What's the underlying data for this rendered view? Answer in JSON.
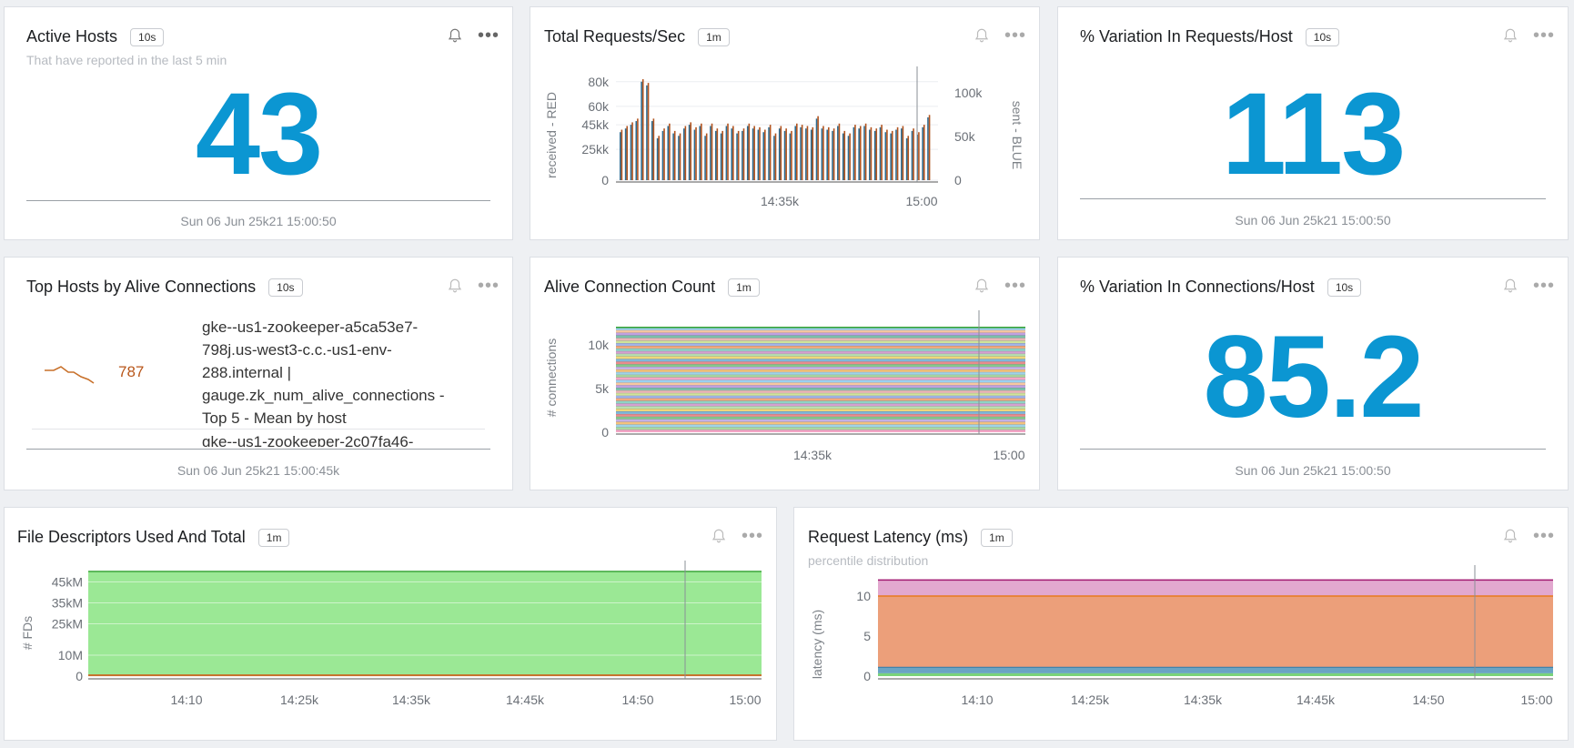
{
  "active_hosts": {
    "title": "Active Hosts",
    "resolution": "10s",
    "subtitle": "That have reported in the last 5 min",
    "value": "43",
    "timestamp": "Sun 06 Jun 25k21 15:00:50"
  },
  "total_requests": {
    "title": "Total Requests/Sec",
    "resolution": "1m",
    "chart_data": {
      "type": "bar",
      "y_left_label": "received - RED",
      "y_right_label": "sent - BLUE",
      "y_left_ticks": [
        "80k",
        "60k",
        "45kk",
        "25kk",
        "0"
      ],
      "y_right_ticks": [
        "100k",
        "50k",
        "0"
      ],
      "x_ticks": [
        "14:35k",
        "15:00"
      ],
      "ylim": [
        0,
        85000
      ],
      "received": [
        41000,
        44000,
        47000,
        50000,
        82000,
        79000,
        50000,
        36000,
        42000,
        46000,
        40000,
        38000,
        44000,
        47000,
        43000,
        46000,
        38000,
        46000,
        42000,
        40000,
        46000,
        44000,
        40000,
        42000,
        46000,
        44000,
        43000,
        41000,
        45000,
        38000,
        44000,
        42000,
        40000,
        46000,
        45000,
        44000,
        43000,
        52000,
        44000,
        43000,
        42000,
        46000,
        40000,
        38000,
        45000,
        44000,
        46000,
        43000,
        42000,
        45000,
        41000,
        40000,
        43000,
        44000,
        36000,
        42000,
        39000,
        45000,
        53000
      ],
      "sent": [
        39000,
        42000,
        45000,
        48000,
        80000,
        77000,
        48000,
        34000,
        40000,
        44000,
        38000,
        36000,
        42000,
        45000,
        41000,
        44000,
        36000,
        44000,
        40000,
        38000,
        44000,
        42000,
        38000,
        40000,
        44000,
        42000,
        41000,
        39000,
        43000,
        36000,
        42000,
        40000,
        38000,
        44000,
        43000,
        42000,
        41000,
        50000,
        42000,
        41000,
        40000,
        44000,
        38000,
        36000,
        43000,
        42000,
        44000,
        41000,
        40000,
        43000,
        39000,
        38000,
        41000,
        42000,
        34000,
        40000,
        37000,
        43000,
        51000
      ]
    }
  },
  "variation_requests": {
    "title": "% Variation In Requests/Host",
    "resolution": "10s",
    "value": "113",
    "timestamp": "Sun 06 Jun 25k21 15:00:50"
  },
  "top_hosts": {
    "title": "Top Hosts by Alive Connections",
    "resolution": "10s",
    "rows": [
      {
        "value": "787",
        "lines": [
          "gke--us1-zookeeper-a5ca53e7-",
          "798j.us-west3-c.c.-us1-env-",
          "288.internal |",
          "gauge.zk_num_alive_connections -",
          "Top 5 - Mean by host"
        ]
      },
      {
        "lines": [
          "gke--us1-zookeeper-2c07fa46-"
        ]
      }
    ],
    "timestamp": "Sun 06 Jun 25k21 15:00:45k"
  },
  "alive_conn": {
    "title": "Alive Connection Count",
    "resolution": "1m",
    "chart_data": {
      "type": "area",
      "ylabel": "# connections",
      "y_ticks": [
        "10k",
        "5k",
        "0"
      ],
      "x_ticks": [
        "14:35k",
        "15:00"
      ],
      "ylim": [
        0,
        12500
      ],
      "series_total": 12000,
      "band_count": 40
    }
  },
  "variation_conn": {
    "title": "% Variation In Connections/Host",
    "resolution": "10s",
    "value": "85.2",
    "timestamp": "Sun 06 Jun 25k21 15:00:50"
  },
  "file_desc": {
    "title": "File Descriptors Used And Total",
    "resolution": "1m",
    "chart_data": {
      "type": "area",
      "ylabel": "# FDs",
      "y_ticks": [
        "45kM",
        "35kM",
        "25kM",
        "10M",
        "0"
      ],
      "x_ticks": [
        "14:10",
        "14:25k",
        "14:35k",
        "14:45k",
        "14:50",
        "15:00"
      ],
      "series": [
        {
          "value": 50000000,
          "color": "#9be895"
        },
        {
          "value": 400000,
          "color": "#c8702a"
        }
      ],
      "ylim": [
        0,
        50000000
      ]
    }
  },
  "latency": {
    "title": "Request Latency (ms)",
    "resolution": "1m",
    "subtitle": "percentile distribution",
    "chart_data": {
      "type": "area",
      "ylabel": "latency (ms)",
      "y_ticks": [
        "10",
        "5",
        "0"
      ],
      "x_ticks": [
        "14:10",
        "14:25k",
        "14:35k",
        "14:45k",
        "14:50",
        "15:00"
      ],
      "ylim": [
        0,
        12.5
      ],
      "bands": [
        {
          "from": 10.0,
          "to": 12.0,
          "color": "#e2a8cf"
        },
        {
          "from": 1.1,
          "to": 10.0,
          "color": "#ec9f7a"
        },
        {
          "from": 0.35,
          "to": 1.1,
          "color": "#6aa4c4"
        },
        {
          "from": 0,
          "to": 0.35,
          "color": "#79d37a"
        }
      ]
    }
  }
}
